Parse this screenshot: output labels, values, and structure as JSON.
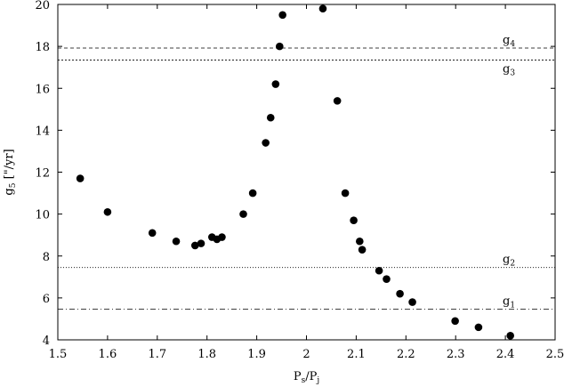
{
  "chart_data": {
    "type": "scatter",
    "title": "",
    "xlabel": {
      "main": "P",
      "sub1": "s",
      "mid": "/P",
      "sub2": "j"
    },
    "ylabel": {
      "main": "g",
      "sub": "5",
      "unit": " [\"/yr]"
    },
    "xlim": [
      1.5,
      2.5
    ],
    "ylim": [
      4,
      20
    ],
    "xticks": [
      "1.5",
      "1.6",
      "1.7",
      "1.8",
      "1.9",
      "2",
      "2.1",
      "2.2",
      "2.3",
      "2.4",
      "2.5"
    ],
    "yticks": [
      "4",
      "6",
      "8",
      "10",
      "12",
      "14",
      "16",
      "18",
      "20"
    ],
    "grid": false,
    "points": [
      {
        "x": 1.545,
        "y": 11.7
      },
      {
        "x": 1.6,
        "y": 10.1
      },
      {
        "x": 1.69,
        "y": 9.1
      },
      {
        "x": 1.738,
        "y": 8.7
      },
      {
        "x": 1.776,
        "y": 8.5
      },
      {
        "x": 1.788,
        "y": 8.6
      },
      {
        "x": 1.81,
        "y": 8.9
      },
      {
        "x": 1.82,
        "y": 8.8
      },
      {
        "x": 1.83,
        "y": 8.9
      },
      {
        "x": 1.873,
        "y": 10.0
      },
      {
        "x": 1.892,
        "y": 11.0
      },
      {
        "x": 1.918,
        "y": 13.4
      },
      {
        "x": 1.928,
        "y": 14.6
      },
      {
        "x": 1.938,
        "y": 16.2
      },
      {
        "x": 1.946,
        "y": 18.0
      },
      {
        "x": 1.952,
        "y": 19.5
      },
      {
        "x": 2.033,
        "y": 19.8
      },
      {
        "x": 2.062,
        "y": 15.4
      },
      {
        "x": 2.078,
        "y": 11.0
      },
      {
        "x": 2.095,
        "y": 9.7
      },
      {
        "x": 2.107,
        "y": 8.7
      },
      {
        "x": 2.112,
        "y": 8.3
      },
      {
        "x": 2.146,
        "y": 7.3
      },
      {
        "x": 2.161,
        "y": 6.9
      },
      {
        "x": 2.188,
        "y": 6.2
      },
      {
        "x": 2.213,
        "y": 5.8
      },
      {
        "x": 2.299,
        "y": 4.9
      },
      {
        "x": 2.346,
        "y": 4.6
      },
      {
        "x": 2.41,
        "y": 4.2
      }
    ],
    "reference_lines": [
      {
        "name": "g",
        "sub": "4",
        "y": 17.92,
        "style": "dashed"
      },
      {
        "name": "g",
        "sub": "3",
        "y": 17.35,
        "style": "dotted"
      },
      {
        "name": "g",
        "sub": "2",
        "y": 7.45,
        "style": "fine-dotted"
      },
      {
        "name": "g",
        "sub": "1",
        "y": 5.47,
        "style": "dash-dot"
      }
    ]
  }
}
